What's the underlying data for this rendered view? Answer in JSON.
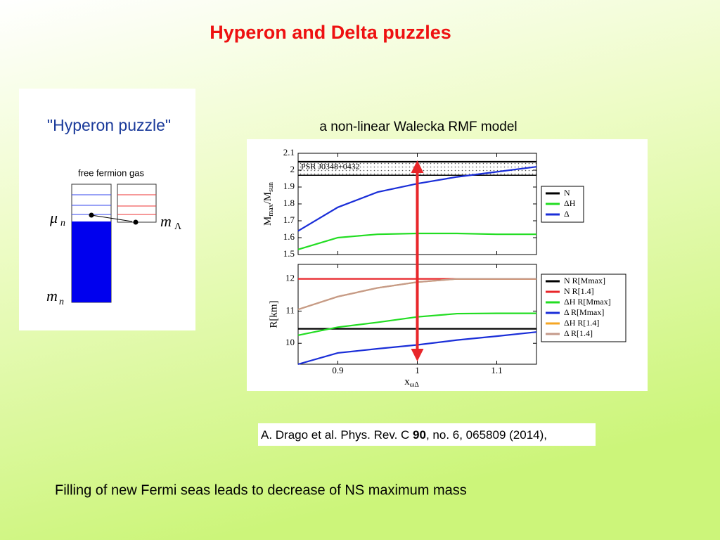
{
  "title": "Hyperon and Delta puzzles",
  "left_panel": {
    "title": "\"Hyperon puzzle\"",
    "caption": "free fermion gas",
    "mu": {
      "symbol": "μ",
      "sub": "n"
    },
    "m_lambda": {
      "symbol": "m",
      "sub": "Λ"
    },
    "m_n": {
      "symbol": "m",
      "sub": "n"
    }
  },
  "model_label": "a non-linear Walecka RMF model",
  "arrow": {
    "x": 1,
    "color": "#e8262a"
  },
  "chart_data": [
    {
      "type": "line",
      "ylabel_parts": [
        "M",
        "max",
        "/M",
        "sun"
      ],
      "x": [
        0.85,
        0.9,
        0.95,
        1.0,
        1.05,
        1.1,
        1.15
      ],
      "xlim": [
        0.85,
        1.15
      ],
      "ylim": [
        1.5,
        2.1
      ],
      "yticks": [
        1.5,
        1.6,
        1.7,
        1.8,
        1.9,
        2,
        2.1
      ],
      "band": {
        "label": "PSR J0348+0432",
        "range": [
          1.97,
          2.05
        ]
      },
      "series": [
        {
          "name": "N",
          "color": "#000000",
          "values": [
            2.05,
            2.05,
            2.05,
            2.05,
            2.05,
            2.05,
            2.05
          ]
        },
        {
          "name": "ΔH",
          "color": "#22dd22",
          "values": [
            1.53,
            1.6,
            1.62,
            1.625,
            1.625,
            1.62,
            1.62
          ]
        },
        {
          "name": "Δ",
          "color": "#1a2ed8",
          "values": [
            1.64,
            1.78,
            1.87,
            1.92,
            1.96,
            1.99,
            2.02
          ]
        }
      ]
    },
    {
      "type": "line",
      "ylabel": "R[km]",
      "xlabel_parts": [
        "x",
        "ωΔ"
      ],
      "x": [
        0.85,
        0.9,
        0.95,
        1.0,
        1.05,
        1.1,
        1.15
      ],
      "xlim": [
        0.85,
        1.15
      ],
      "xticks": [
        0.9,
        1,
        1.1
      ],
      "ylim": [
        9.35,
        12.45
      ],
      "yticks": [
        10,
        11,
        12
      ],
      "series": [
        {
          "name": "N R[Mmax]",
          "color": "#000000",
          "values": [
            10.45,
            10.45,
            10.45,
            10.45,
            10.45,
            10.45,
            10.45
          ]
        },
        {
          "name": "N R[1.4]",
          "color": "#e8262a",
          "values": [
            12.0,
            12.0,
            12.0,
            12.0,
            12.0,
            12.0,
            12.0
          ]
        },
        {
          "name": "ΔH R[Mmax]",
          "color": "#22dd22",
          "values": [
            10.25,
            10.5,
            10.65,
            10.82,
            10.92,
            10.93,
            10.93
          ]
        },
        {
          "name": "Δ R[Mmax]",
          "color": "#1a2ed8",
          "values": [
            9.35,
            9.7,
            9.83,
            9.95,
            10.1,
            10.22,
            10.35
          ]
        },
        {
          "name": "ΔH R[1.4]",
          "color": "#f5a623",
          "values": [
            11.05,
            11.45,
            11.72,
            11.9,
            12.0,
            12.0,
            12.0
          ]
        },
        {
          "name": "Δ R[1.4]",
          "color": "#c49a8a",
          "values": [
            11.05,
            11.45,
            11.72,
            11.9,
            12.0,
            12.0,
            12.0
          ]
        }
      ]
    }
  ],
  "citation": {
    "parts": [
      "A. Drago et al. Phys. Rev. C ",
      "90",
      ", no. 6, 065809 (2014),"
    ]
  },
  "footer": "Filling of new Fermi seas leads to decrease of NS maximum mass"
}
